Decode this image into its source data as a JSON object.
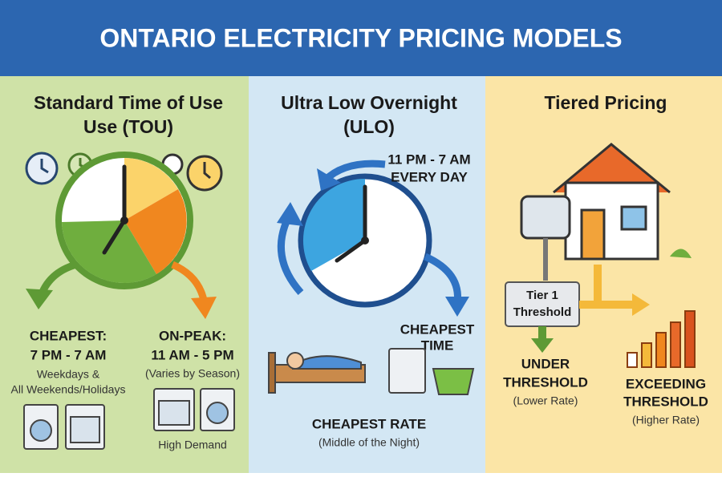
{
  "header": {
    "title": "ONTARIO ELECTRICITY PRICING MODELS"
  },
  "panels": [
    {
      "title_lines": [
        "Standard Time of Use",
        "Use (TOU)"
      ],
      "cheapest": {
        "label": "CHEAPEST:",
        "hours": "7 PM - 7 AM",
        "notes": [
          "Weekdays &",
          "All Weekends/Holidays"
        ]
      },
      "on_peak": {
        "label": "ON-PEAK:",
        "hours": "11 AM - 5 PM",
        "note": "(Varies by Season)",
        "caption": "High Demand"
      }
    },
    {
      "title_lines": [
        "Ultra Low Overnight",
        "(ULO)"
      ],
      "schedule": [
        "11 PM - 7 AM",
        "EVERY DAY"
      ],
      "cheapest_time": [
        "CHEAPEST",
        "TIME"
      ],
      "rate": {
        "label": "CHEAPEST RATE",
        "note": "(Middle of the Night)"
      }
    },
    {
      "title_lines": [
        "Tiered Pricing"
      ],
      "threshold_box": [
        "Tier 1",
        "Threshold"
      ],
      "under": {
        "lines": [
          "UNDER",
          "THRESHOLD"
        ],
        "note": "(Lower Rate)"
      },
      "exceeding": {
        "lines": [
          "EXCEEDING",
          "THRESHOLD"
        ],
        "note": "(Higher Rate)"
      }
    }
  ]
}
